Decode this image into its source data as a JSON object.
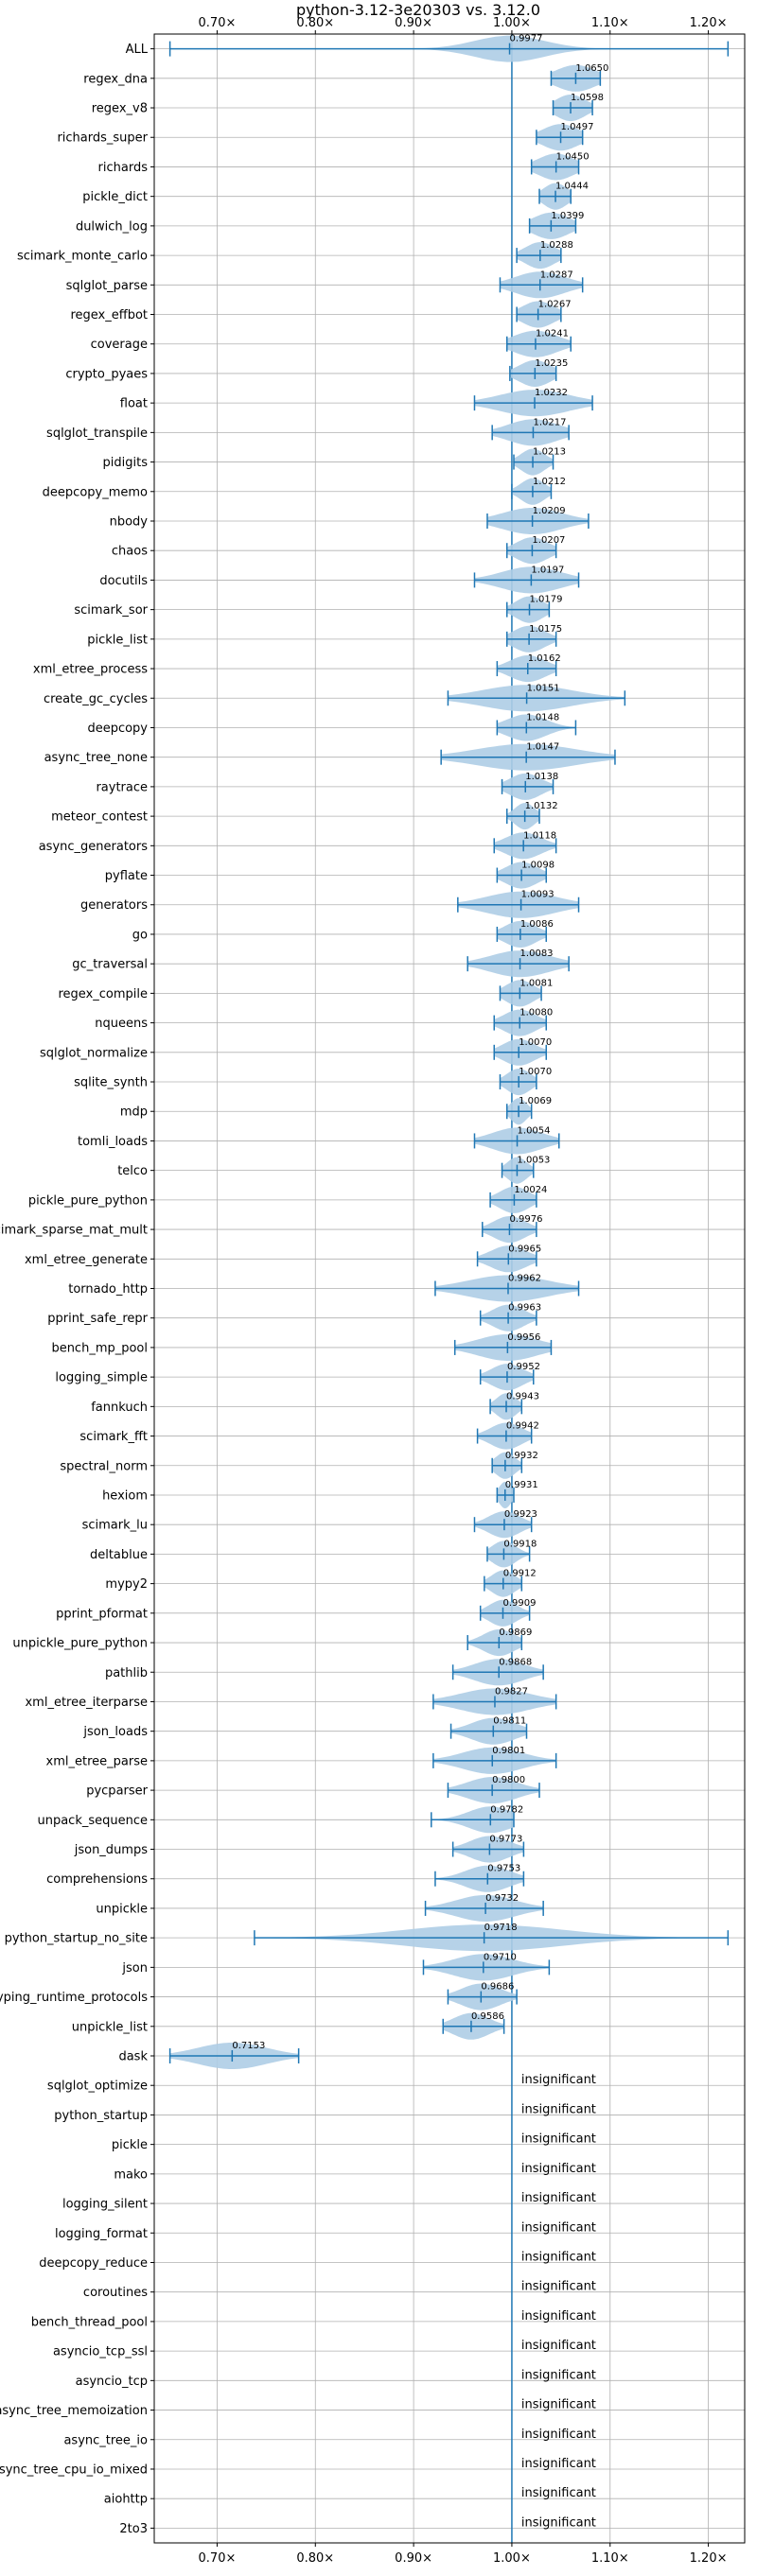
{
  "chart_data": {
    "type": "violin",
    "title": "python-3.12-3e20303 vs. 3.12.0",
    "x_ticks": [
      "0.70×",
      "0.80×",
      "0.90×",
      "1.00×",
      "1.10×",
      "1.20×"
    ],
    "x_tick_values": [
      0.7,
      0.8,
      0.9,
      1.0,
      1.1,
      1.2
    ],
    "xlim": [
      0.636,
      1.237
    ],
    "grid": true,
    "insignificant_label": "insignificant",
    "colors": {
      "violin": "#aecde6",
      "line": "#1f77b4",
      "grid": "#b0b0b0"
    },
    "benchmarks": [
      {
        "name": "ALL",
        "value": 0.9977,
        "label": "0.9977",
        "min": 0.652,
        "max": 1.22,
        "spread": 0.035
      },
      {
        "name": "regex_dna",
        "value": 1.065,
        "label": "1.0650",
        "min": 1.04,
        "max": 1.09,
        "spread": 0.02
      },
      {
        "name": "regex_v8",
        "value": 1.0598,
        "label": "1.0598",
        "min": 1.042,
        "max": 1.082,
        "spread": 0.015
      },
      {
        "name": "richards_super",
        "value": 1.0497,
        "label": "1.0497",
        "min": 1.025,
        "max": 1.072,
        "spread": 0.018
      },
      {
        "name": "richards",
        "value": 1.045,
        "label": "1.0450",
        "min": 1.02,
        "max": 1.068,
        "spread": 0.018
      },
      {
        "name": "pickle_dict",
        "value": 1.0444,
        "label": "1.0444",
        "min": 1.028,
        "max": 1.06,
        "spread": 0.012
      },
      {
        "name": "dulwich_log",
        "value": 1.0399,
        "label": "1.0399",
        "min": 1.018,
        "max": 1.065,
        "spread": 0.018
      },
      {
        "name": "scimark_monte_carlo",
        "value": 1.0288,
        "label": "1.0288",
        "min": 1.005,
        "max": 1.05,
        "spread": 0.015
      },
      {
        "name": "sqlglot_parse",
        "value": 1.0287,
        "label": "1.0287",
        "min": 0.988,
        "max": 1.072,
        "spread": 0.025
      },
      {
        "name": "regex_effbot",
        "value": 1.0267,
        "label": "1.0267",
        "min": 1.005,
        "max": 1.05,
        "spread": 0.016
      },
      {
        "name": "coverage",
        "value": 1.0241,
        "label": "1.0241",
        "min": 0.995,
        "max": 1.06,
        "spread": 0.022
      },
      {
        "name": "crypto_pyaes",
        "value": 1.0235,
        "label": "1.0235",
        "min": 0.998,
        "max": 1.045,
        "spread": 0.016
      },
      {
        "name": "float",
        "value": 1.0232,
        "label": "1.0232",
        "min": 0.962,
        "max": 1.082,
        "spread": 0.035
      },
      {
        "name": "sqlglot_transpile",
        "value": 1.0217,
        "label": "1.0217",
        "min": 0.98,
        "max": 1.058,
        "spread": 0.025
      },
      {
        "name": "pidigits",
        "value": 1.0213,
        "label": "1.0213",
        "min": 1.002,
        "max": 1.042,
        "spread": 0.012
      },
      {
        "name": "deepcopy_memo",
        "value": 1.0212,
        "label": "1.0212",
        "min": 1.0,
        "max": 1.04,
        "spread": 0.012
      },
      {
        "name": "nbody",
        "value": 1.0209,
        "label": "1.0209",
        "min": 0.975,
        "max": 1.078,
        "spread": 0.03
      },
      {
        "name": "chaos",
        "value": 1.0207,
        "label": "1.0207",
        "min": 0.995,
        "max": 1.045,
        "spread": 0.016
      },
      {
        "name": "docutils",
        "value": 1.0197,
        "label": "1.0197",
        "min": 0.962,
        "max": 1.068,
        "spread": 0.03
      },
      {
        "name": "scimark_sor",
        "value": 1.0179,
        "label": "1.0179",
        "min": 0.995,
        "max": 1.038,
        "spread": 0.014
      },
      {
        "name": "pickle_list",
        "value": 1.0175,
        "label": "1.0175",
        "min": 0.995,
        "max": 1.045,
        "spread": 0.016
      },
      {
        "name": "xml_etree_process",
        "value": 1.0162,
        "label": "1.0162",
        "min": 0.985,
        "max": 1.045,
        "spread": 0.018
      },
      {
        "name": "create_gc_cycles",
        "value": 1.0151,
        "label": "1.0151",
        "min": 0.935,
        "max": 1.115,
        "spread": 0.045
      },
      {
        "name": "deepcopy",
        "value": 1.0148,
        "label": "1.0148",
        "min": 0.985,
        "max": 1.065,
        "spread": 0.02
      },
      {
        "name": "async_tree_none",
        "value": 1.0147,
        "label": "1.0147",
        "min": 0.928,
        "max": 1.105,
        "spread": 0.05
      },
      {
        "name": "raytrace",
        "value": 1.0138,
        "label": "1.0138",
        "min": 0.99,
        "max": 1.042,
        "spread": 0.016
      },
      {
        "name": "meteor_contest",
        "value": 1.0132,
        "label": "1.0132",
        "min": 0.995,
        "max": 1.028,
        "spread": 0.01
      },
      {
        "name": "async_generators",
        "value": 1.0118,
        "label": "1.0118",
        "min": 0.982,
        "max": 1.045,
        "spread": 0.018
      },
      {
        "name": "pyflate",
        "value": 1.0098,
        "label": "1.0098",
        "min": 0.985,
        "max": 1.035,
        "spread": 0.016
      },
      {
        "name": "generators",
        "value": 1.0093,
        "label": "1.0093",
        "min": 0.945,
        "max": 1.068,
        "spread": 0.035
      },
      {
        "name": "go",
        "value": 1.0086,
        "label": "1.0086",
        "min": 0.985,
        "max": 1.035,
        "spread": 0.016
      },
      {
        "name": "gc_traversal",
        "value": 1.0083,
        "label": "1.0083",
        "min": 0.955,
        "max": 1.058,
        "spread": 0.03
      },
      {
        "name": "regex_compile",
        "value": 1.0081,
        "label": "1.0081",
        "min": 0.988,
        "max": 1.03,
        "spread": 0.014
      },
      {
        "name": "nqueens",
        "value": 1.008,
        "label": "1.0080",
        "min": 0.982,
        "max": 1.035,
        "spread": 0.016
      },
      {
        "name": "sqlglot_normalize",
        "value": 1.007,
        "label": "1.0070",
        "min": 0.982,
        "max": 1.035,
        "spread": 0.016
      },
      {
        "name": "sqlite_synth",
        "value": 1.007,
        "label": "1.0070",
        "min": 0.988,
        "max": 1.025,
        "spread": 0.012
      },
      {
        "name": "mdp",
        "value": 1.0069,
        "label": "1.0069",
        "min": 0.995,
        "max": 1.02,
        "spread": 0.008
      },
      {
        "name": "tomli_loads",
        "value": 1.0054,
        "label": "1.0054",
        "min": 0.962,
        "max": 1.048,
        "spread": 0.025
      },
      {
        "name": "telco",
        "value": 1.0053,
        "label": "1.0053",
        "min": 0.99,
        "max": 1.022,
        "spread": 0.01
      },
      {
        "name": "pickle_pure_python",
        "value": 1.0024,
        "label": "1.0024",
        "min": 0.978,
        "max": 1.025,
        "spread": 0.015
      },
      {
        "name": "scimark_sparse_mat_mult",
        "value": 0.9976,
        "label": "0.9976",
        "min": 0.97,
        "max": 1.025,
        "spread": 0.016
      },
      {
        "name": "xml_etree_generate",
        "value": 0.9965,
        "label": "0.9965",
        "min": 0.965,
        "max": 1.025,
        "spread": 0.018
      },
      {
        "name": "tornado_http",
        "value": 0.9962,
        "label": "0.9962",
        "min": 0.922,
        "max": 1.068,
        "spread": 0.04
      },
      {
        "name": "pprint_safe_repr",
        "value": 0.9963,
        "label": "0.9963",
        "min": 0.968,
        "max": 1.025,
        "spread": 0.016
      },
      {
        "name": "bench_mp_pool",
        "value": 0.9956,
        "label": "0.9956",
        "min": 0.942,
        "max": 1.04,
        "spread": 0.03
      },
      {
        "name": "logging_simple",
        "value": 0.9952,
        "label": "0.9952",
        "min": 0.968,
        "max": 1.022,
        "spread": 0.016
      },
      {
        "name": "fannkuch",
        "value": 0.9943,
        "label": "0.9943",
        "min": 0.978,
        "max": 1.01,
        "spread": 0.01
      },
      {
        "name": "scimark_fft",
        "value": 0.9942,
        "label": "0.9942",
        "min": 0.965,
        "max": 1.02,
        "spread": 0.016
      },
      {
        "name": "spectral_norm",
        "value": 0.9932,
        "label": "0.9932",
        "min": 0.98,
        "max": 1.01,
        "spread": 0.01
      },
      {
        "name": "hexiom",
        "value": 0.9931,
        "label": "0.9931",
        "min": 0.985,
        "max": 1.002,
        "spread": 0.006
      },
      {
        "name": "scimark_lu",
        "value": 0.9923,
        "label": "0.9923",
        "min": 0.962,
        "max": 1.02,
        "spread": 0.016
      },
      {
        "name": "deltablue",
        "value": 0.9918,
        "label": "0.9918",
        "min": 0.975,
        "max": 1.018,
        "spread": 0.012
      },
      {
        "name": "mypy2",
        "value": 0.9912,
        "label": "0.9912",
        "min": 0.972,
        "max": 1.01,
        "spread": 0.012
      },
      {
        "name": "pprint_pformat",
        "value": 0.9909,
        "label": "0.9909",
        "min": 0.968,
        "max": 1.018,
        "spread": 0.014
      },
      {
        "name": "unpickle_pure_python",
        "value": 0.9869,
        "label": "0.9869",
        "min": 0.955,
        "max": 1.01,
        "spread": 0.016
      },
      {
        "name": "pathlib",
        "value": 0.9868,
        "label": "0.9868",
        "min": 0.94,
        "max": 1.032,
        "spread": 0.025
      },
      {
        "name": "xml_etree_iterparse",
        "value": 0.9827,
        "label": "0.9827",
        "min": 0.92,
        "max": 1.045,
        "spread": 0.035
      },
      {
        "name": "json_loads",
        "value": 0.9811,
        "label": "0.9811",
        "min": 0.938,
        "max": 1.015,
        "spread": 0.022
      },
      {
        "name": "xml_etree_parse",
        "value": 0.9801,
        "label": "0.9801",
        "min": 0.92,
        "max": 1.045,
        "spread": 0.03
      },
      {
        "name": "pycparser",
        "value": 0.98,
        "label": "0.9800",
        "min": 0.935,
        "max": 1.028,
        "spread": 0.025
      },
      {
        "name": "unpack_sequence",
        "value": 0.9782,
        "label": "0.9782",
        "min": 0.918,
        "max": 1.002,
        "spread": 0.022
      },
      {
        "name": "json_dumps",
        "value": 0.9773,
        "label": "0.9773",
        "min": 0.94,
        "max": 1.012,
        "spread": 0.02
      },
      {
        "name": "comprehensions",
        "value": 0.9753,
        "label": "0.9753",
        "min": 0.922,
        "max": 1.012,
        "spread": 0.022
      },
      {
        "name": "unpickle",
        "value": 0.9732,
        "label": "0.9732",
        "min": 0.912,
        "max": 1.032,
        "spread": 0.03
      },
      {
        "name": "python_startup_no_site",
        "value": 0.9718,
        "label": "0.9718",
        "min": 0.738,
        "max": 1.22,
        "spread": 0.08
      },
      {
        "name": "json",
        "value": 0.971,
        "label": "0.9710",
        "min": 0.91,
        "max": 1.038,
        "spread": 0.03
      },
      {
        "name": "typing_runtime_protocols",
        "value": 0.9686,
        "label": "0.9686",
        "min": 0.935,
        "max": 1.005,
        "spread": 0.02
      },
      {
        "name": "unpickle_list",
        "value": 0.9586,
        "label": "0.9586",
        "min": 0.93,
        "max": 0.992,
        "spread": 0.018
      },
      {
        "name": "dask",
        "value": 0.7153,
        "label": "0.7153",
        "min": 0.652,
        "max": 0.783,
        "spread": 0.035
      },
      {
        "name": "sqlglot_optimize",
        "insignificant": true
      },
      {
        "name": "python_startup",
        "insignificant": true
      },
      {
        "name": "pickle",
        "insignificant": true
      },
      {
        "name": "mako",
        "insignificant": true
      },
      {
        "name": "logging_silent",
        "insignificant": true
      },
      {
        "name": "logging_format",
        "insignificant": true
      },
      {
        "name": "deepcopy_reduce",
        "insignificant": true
      },
      {
        "name": "coroutines",
        "insignificant": true
      },
      {
        "name": "bench_thread_pool",
        "insignificant": true
      },
      {
        "name": "asyncio_tcp_ssl",
        "insignificant": true
      },
      {
        "name": "asyncio_tcp",
        "insignificant": true
      },
      {
        "name": "async_tree_memoization",
        "insignificant": true
      },
      {
        "name": "async_tree_io",
        "insignificant": true
      },
      {
        "name": "async_tree_cpu_io_mixed",
        "insignificant": true
      },
      {
        "name": "aiohttp",
        "insignificant": true
      },
      {
        "name": "2to3",
        "insignificant": true
      }
    ]
  }
}
